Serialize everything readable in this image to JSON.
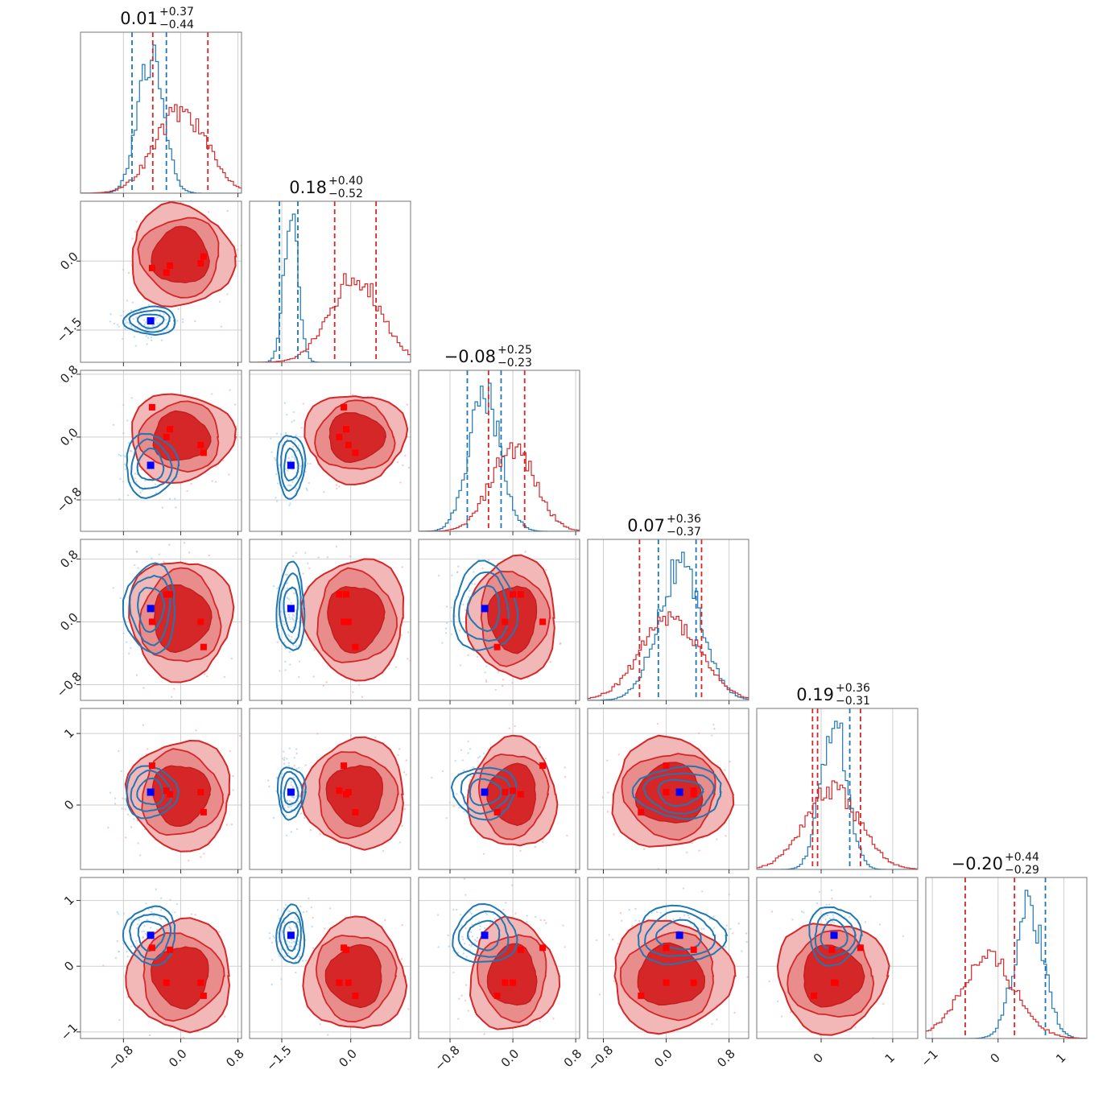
{
  "chart_data": {
    "type": "scatter",
    "subtype": "corner-plot",
    "n_params": 6,
    "series": [
      {
        "name": "",
        "color": "#1f77b4"
      },
      {
        "name": "",
        "color": "#d62728"
      }
    ],
    "marker_colors": {
      "blue": "#0000ff",
      "red": "#ff0000"
    },
    "grid": true,
    "titles": [
      {
        "value": "0.01",
        "plus": "+0.37",
        "minus": "−0.44"
      },
      {
        "value": "0.18",
        "plus": "+0.40",
        "minus": "−0.52"
      },
      {
        "value": "−0.08",
        "plus": "+0.25",
        "minus": "−0.23"
      },
      {
        "value": "0.07",
        "plus": "+0.36",
        "minus": "−0.37"
      },
      {
        "value": "0.19",
        "plus": "+0.36",
        "minus": "−0.31"
      },
      {
        "value": "−0.20",
        "plus": "+0.44",
        "minus": "−0.29"
      }
    ],
    "axes": [
      {
        "range": [
          -1.4,
          0.85
        ],
        "ticks": [
          -0.8,
          0.0,
          0.8
        ],
        "tick_labels": [
          "−0.8",
          "0.0",
          "0.8"
        ]
      },
      {
        "range": [
          -2.2,
          1.3
        ],
        "ticks": [
          -1.5,
          0.0
        ],
        "tick_labels": [
          "−1.5",
          "0.0"
        ]
      },
      {
        "range": [
          -1.2,
          0.85
        ],
        "ticks": [
          -0.8,
          0.0,
          0.8
        ],
        "tick_labels": [
          "−0.8",
          "0.0",
          "0.8"
        ]
      },
      {
        "range": [
          -1.0,
          1.05
        ],
        "ticks": [
          -0.8,
          0.0,
          0.8
        ],
        "tick_labels": [
          "−0.8",
          "0.0",
          "0.8"
        ]
      },
      {
        "range": [
          -0.9,
          1.35
        ],
        "ticks": [
          0,
          1
        ],
        "tick_labels": [
          "0",
          "1"
        ]
      },
      {
        "range": [
          -1.1,
          1.35
        ],
        "ticks": [
          -1,
          0,
          1
        ],
        "tick_labels": [
          "−1",
          "0",
          "1"
        ]
      }
    ],
    "diagonal_quantiles": [
      {
        "blue": [
          -0.68,
          -0.2
        ],
        "red": [
          -0.39,
          0.38
        ]
      },
      {
        "blue": [
          -1.55,
          -1.15
        ],
        "red": [
          -0.35,
          0.55
        ]
      },
      {
        "blue": [
          -0.58,
          -0.15
        ],
        "red": [
          -0.31,
          0.15
        ]
      },
      {
        "blue": [
          -0.1,
          0.38
        ],
        "red": [
          -0.34,
          0.45
        ]
      },
      {
        "blue": [
          0.4
        ],
        "red": [
          -0.12,
          -0.05,
          0.55
        ]
      },
      {
        "blue": [
          0.72
        ],
        "red": [
          -0.5,
          0.25
        ]
      }
    ],
    "blue_cluster_center": [
      -0.42,
      -1.3,
      -0.36,
      0.17,
      0.18,
      0.47
    ],
    "red_cluster_markers": [
      [
        -0.4,
        -0.15,
        0.38,
        0.0,
        0.55,
        0.28
      ],
      [
        -0.15,
        -0.1,
        0.1,
        0.35,
        0.15,
        0.25
      ],
      [
        0.28,
        -0.05,
        -0.1,
        0.0,
        0.18,
        -0.25
      ],
      [
        0.32,
        0.1,
        -0.2,
        -0.32,
        -0.1,
        -0.45
      ],
      [
        -0.2,
        -0.25,
        0.0,
        0.35,
        0.2,
        -0.25
      ]
    ]
  }
}
